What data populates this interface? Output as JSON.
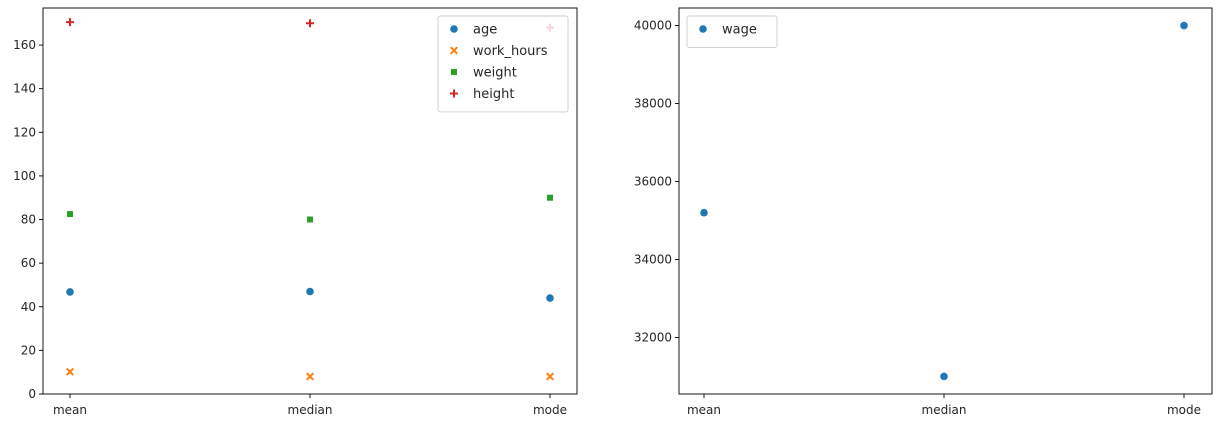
{
  "chart_data": [
    {
      "type": "scatter",
      "categories": [
        "mean",
        "median",
        "mode"
      ],
      "ylim": [
        0,
        177
      ],
      "yticks": [
        0,
        20,
        40,
        60,
        80,
        100,
        120,
        140,
        160
      ],
      "grid": false,
      "legend_position": "top-right",
      "series": [
        {
          "name": "age",
          "values": [
            46.8,
            47,
            44
          ],
          "color": "#1f77b4",
          "marker": "circle"
        },
        {
          "name": "work_hours",
          "values": [
            10.2,
            8,
            8
          ],
          "color": "#ff7f0e",
          "marker": "x"
        },
        {
          "name": "weight",
          "values": [
            82.5,
            80,
            90
          ],
          "color": "#2ca02c",
          "marker": "square"
        },
        {
          "name": "height",
          "values": [
            170.5,
            170,
            168
          ],
          "color": "#d62728",
          "marker": "plus"
        }
      ]
    },
    {
      "type": "scatter",
      "categories": [
        "mean",
        "median",
        "mode"
      ],
      "ylim": [
        30550,
        40450
      ],
      "yticks": [
        32000,
        34000,
        36000,
        38000,
        40000
      ],
      "grid": false,
      "legend_position": "top-left",
      "series": [
        {
          "name": "wage",
          "values": [
            35200,
            31000,
            40000
          ],
          "color": "#1f77b4",
          "marker": "circle"
        }
      ]
    }
  ]
}
